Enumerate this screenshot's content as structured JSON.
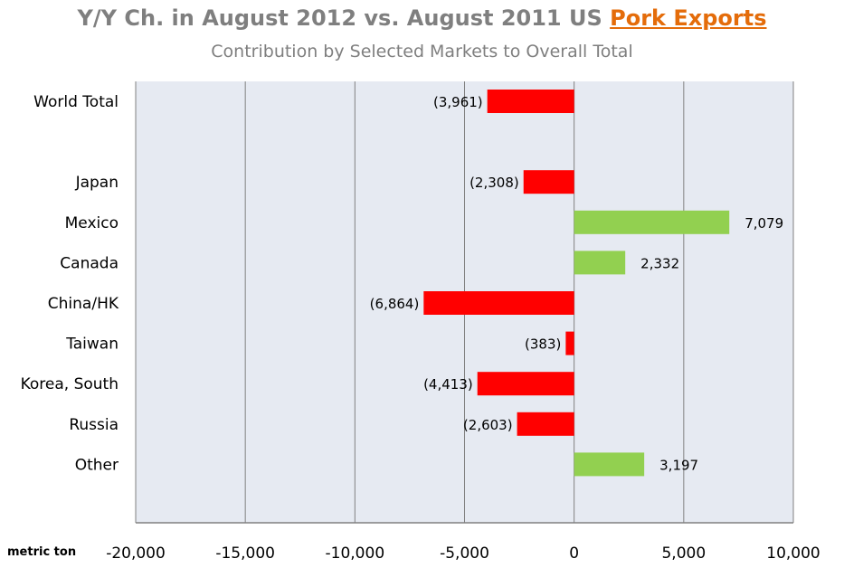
{
  "title_prefix": "Y/Y Ch.  in August 2012 vs. August 2011 US ",
  "title_highlight": "Pork Exports",
  "subtitle": "Contribution  by Selected Markets  to Overall Total",
  "unit_label": "metric ton",
  "colors": {
    "negative": "#ff0000",
    "positive": "#92d050",
    "plot_bg": "#e6eaf2",
    "grid": "#808080"
  },
  "chart_data": {
    "type": "bar",
    "orientation": "horizontal",
    "title": "Y/Y Ch.  in August 2012 vs. August 2011 US Pork Exports",
    "subtitle": "Contribution  by Selected Markets  to Overall Total",
    "xlabel": "metric ton",
    "ylabel": "",
    "xlim": [
      -20000,
      10000
    ],
    "xticks": [
      -20000,
      -15000,
      -10000,
      -5000,
      0,
      5000,
      10000
    ],
    "xtick_labels": [
      "-20,000",
      "-15,000",
      "-10,000",
      "-5,000",
      "0",
      "5,000",
      "10,000"
    ],
    "grid": true,
    "categories": [
      "World Total",
      "",
      "Japan",
      "Mexico",
      "Canada",
      "China/HK",
      "Taiwan",
      "Korea, South",
      "Russia",
      "Other"
    ],
    "values": [
      -3961,
      null,
      -2308,
      7079,
      2332,
      -6864,
      -383,
      -4413,
      -2603,
      3197
    ],
    "value_labels": [
      "(3,961)",
      "",
      "(2,308)",
      "7,079",
      "2,332",
      "(6,864)",
      "(383)",
      "(4,413)",
      "(2,603)",
      "3,197"
    ]
  }
}
